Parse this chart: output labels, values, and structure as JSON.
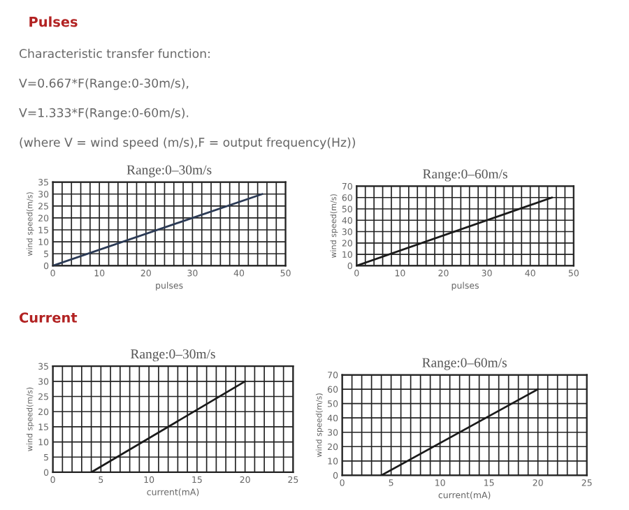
{
  "chart_data": [
    {
      "type": "line",
      "title": "Range:0–30m/s",
      "xlabel": "pulses",
      "ylabel": "wind speed(m/s)",
      "annotations": [
        "Pulses",
        "Characteristic transfer function:",
        "V=0.667*F(Range:0-30m/s),",
        "V=1.333*F(Range:0-60m/s).",
        "(where V = wind speed (m/s),F = output frequency(Hz))"
      ],
      "series": [
        {
          "color": "#2b3a55",
          "x": [
            0,
            45
          ],
          "values": [
            0,
            30
          ]
        }
      ],
      "xlim": [
        0,
        50
      ],
      "ylim": [
        0,
        35
      ],
      "grid": true,
      "xticks": [
        0,
        {
          "value": 2,
          "label": null
        },
        {
          "value": 4,
          "label": null
        },
        {
          "value": 6,
          "label": null
        },
        {
          "value": 8,
          "label": null
        },
        10,
        {
          "value": 12,
          "label": null
        },
        {
          "value": 14,
          "label": null
        },
        {
          "value": 16,
          "label": null
        },
        {
          "value": 18,
          "label": null
        },
        20,
        {
          "value": 22,
          "label": null
        },
        {
          "value": 24,
          "label": null
        },
        {
          "value": 26,
          "label": null
        },
        {
          "value": 28,
          "label": null
        },
        30,
        {
          "value": 32,
          "label": null
        },
        {
          "value": 34,
          "label": null
        },
        {
          "value": 36,
          "label": null
        },
        {
          "value": 38,
          "label": null
        },
        40,
        {
          "value": 42,
          "label": null
        },
        {
          "value": 44,
          "label": null
        },
        {
          "value": 46,
          "label": null
        },
        {
          "value": 48,
          "label": null
        },
        50
      ],
      "yticks": [
        0,
        5,
        10,
        15,
        20,
        25,
        30,
        35
      ]
    },
    {
      "type": "line",
      "title": "Range:0–60m/s",
      "xlabel": "pulses",
      "ylabel": "wind speed(m/s)",
      "series": [
        {
          "color": "#1a1a1a",
          "x": [
            0,
            45
          ],
          "values": [
            0,
            60
          ]
        }
      ],
      "xlim": [
        0,
        50
      ],
      "ylim": [
        0,
        70
      ],
      "grid": true,
      "xticks": [
        0,
        {
          "value": 2,
          "label": null
        },
        {
          "value": 4,
          "label": null
        },
        {
          "value": 6,
          "label": null
        },
        {
          "value": 8,
          "label": null
        },
        10,
        {
          "value": 12,
          "label": null
        },
        {
          "value": 14,
          "label": null
        },
        {
          "value": 16,
          "label": null
        },
        {
          "value": 18,
          "label": null
        },
        20,
        {
          "value": 22,
          "label": null
        },
        {
          "value": 24,
          "label": null
        },
        {
          "value": 26,
          "label": null
        },
        {
          "value": 28,
          "label": null
        },
        30,
        {
          "value": 32,
          "label": null
        },
        {
          "value": 34,
          "label": null
        },
        {
          "value": 36,
          "label": null
        },
        {
          "value": 38,
          "label": null
        },
        40,
        {
          "value": 42,
          "label": null
        },
        {
          "value": 44,
          "label": null
        },
        {
          "value": 46,
          "label": null
        },
        {
          "value": 48,
          "label": null
        },
        50
      ],
      "yticks": [
        0,
        10,
        20,
        30,
        40,
        50,
        60,
        70
      ]
    },
    {
      "type": "line",
      "title": "Range:0–30m/s",
      "xlabel": "current(mA)",
      "ylabel": "wind speed(m/s)",
      "annotations": [
        "Current"
      ],
      "series": [
        {
          "color": "#1a1a1a",
          "x": [
            4,
            20
          ],
          "values": [
            0,
            30
          ]
        }
      ],
      "xlim": [
        0,
        25
      ],
      "ylim": [
        0,
        35
      ],
      "grid": true,
      "xticks": [
        0,
        {
          "value": 1,
          "label": null
        },
        {
          "value": 2,
          "label": null
        },
        {
          "value": 3,
          "label": null
        },
        {
          "value": 4,
          "label": null
        },
        5,
        {
          "value": 6,
          "label": null
        },
        {
          "value": 7,
          "label": null
        },
        {
          "value": 8,
          "label": null
        },
        {
          "value": 9,
          "label": null
        },
        10,
        {
          "value": 11,
          "label": null
        },
        {
          "value": 12,
          "label": null
        },
        {
          "value": 13,
          "label": null
        },
        {
          "value": 14,
          "label": null
        },
        15,
        {
          "value": 16,
          "label": null
        },
        {
          "value": 17,
          "label": null
        },
        {
          "value": 18,
          "label": null
        },
        {
          "value": 19,
          "label": null
        },
        20,
        {
          "value": 21,
          "label": null
        },
        {
          "value": 22,
          "label": null
        },
        {
          "value": 23,
          "label": null
        },
        {
          "value": 24,
          "label": null
        },
        25
      ],
      "yticks": [
        0,
        5,
        10,
        15,
        20,
        25,
        30,
        35
      ]
    },
    {
      "type": "line",
      "title": "Range:0–60m/s",
      "xlabel": "current(mA)",
      "ylabel": "wind speed(m/s)",
      "series": [
        {
          "color": "#1a1a1a",
          "x": [
            4,
            20
          ],
          "values": [
            0,
            60
          ]
        }
      ],
      "xlim": [
        0,
        25
      ],
      "ylim": [
        0,
        70
      ],
      "grid": true,
      "xticks": [
        0,
        {
          "value": 1,
          "label": null
        },
        {
          "value": 2,
          "label": null
        },
        {
          "value": 3,
          "label": null
        },
        {
          "value": 4,
          "label": null
        },
        5,
        {
          "value": 6,
          "label": null
        },
        {
          "value": 7,
          "label": null
        },
        {
          "value": 8,
          "label": null
        },
        {
          "value": 9,
          "label": null
        },
        10,
        {
          "value": 11,
          "label": null
        },
        {
          "value": 12,
          "label": null
        },
        {
          "value": 13,
          "label": null
        },
        {
          "value": 14,
          "label": null
        },
        15,
        {
          "value": 16,
          "label": null
        },
        {
          "value": 17,
          "label": null
        },
        {
          "value": 18,
          "label": null
        },
        {
          "value": 19,
          "label": null
        },
        20,
        {
          "value": 21,
          "label": null
        },
        {
          "value": 22,
          "label": null
        },
        {
          "value": 23,
          "label": null
        },
        {
          "value": 24,
          "label": null
        },
        25
      ],
      "yticks": [
        0,
        10,
        20,
        30,
        40,
        50,
        60,
        70
      ]
    }
  ]
}
